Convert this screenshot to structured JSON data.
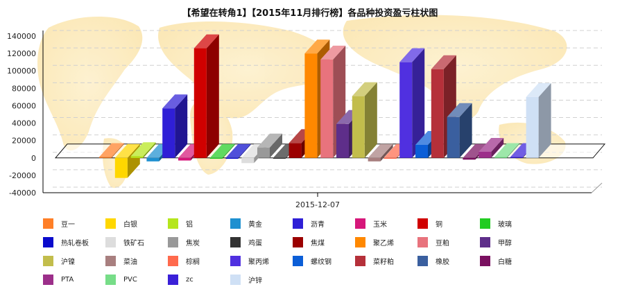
{
  "chart_data": {
    "type": "bar",
    "title": "【希望在转角1】【2015年11月排行榜】各品种投资盈亏柱状图",
    "categories": [
      "2015-12-07"
    ],
    "ylim": [
      -40000,
      140000
    ],
    "yticks": [
      "140000",
      "120000",
      "100000",
      "80000",
      "60000",
      "40000",
      "20000",
      "0",
      "-20000",
      "-40000"
    ],
    "grid": true,
    "legend_position": "bottom",
    "series": [
      {
        "name": "豆一",
        "color": "#ff7f27",
        "values": [
          1000
        ]
      },
      {
        "name": "白银",
        "color": "#ffd700",
        "values": [
          -23000
        ]
      },
      {
        "name": "铝",
        "color": "#b5e61d",
        "values": [
          2000
        ]
      },
      {
        "name": "黄金",
        "color": "#1e90d0",
        "values": [
          -4000
        ]
      },
      {
        "name": "沥青",
        "color": "#2f1fd6",
        "values": [
          57000
        ]
      },
      {
        "name": "玉米",
        "color": "#d6177a",
        "values": [
          -3000
        ]
      },
      {
        "name": "铜",
        "color": "#d00000",
        "values": [
          126000
        ]
      },
      {
        "name": "玻璃",
        "color": "#22cc22",
        "values": [
          -1000
        ]
      },
      {
        "name": "热轧卷板",
        "color": "#0a0acc",
        "values": [
          -1000
        ]
      },
      {
        "name": "铁矿石",
        "color": "#dddddd",
        "values": [
          -6000
        ]
      },
      {
        "name": "焦炭",
        "color": "#999999",
        "values": [
          12000
        ]
      },
      {
        "name": "鸡蛋",
        "color": "#333333",
        "values": [
          -1000
        ]
      },
      {
        "name": "焦煤",
        "color": "#9b0000",
        "values": [
          17000
        ]
      },
      {
        "name": "聚乙烯",
        "color": "#ff8800",
        "values": [
          120000
        ]
      },
      {
        "name": "豆粕",
        "color": "#e8737d",
        "values": [
          113000
        ]
      },
      {
        "name": "甲醇",
        "color": "#5e2e8a",
        "values": [
          39000
        ]
      },
      {
        "name": "沪镍",
        "color": "#c2bd4c",
        "values": [
          71000
        ]
      },
      {
        "name": "菜油",
        "color": "#a87f7f",
        "values": [
          -4000
        ]
      },
      {
        "name": "棕榈",
        "color": "#ff6a4d",
        "values": [
          -1000
        ]
      },
      {
        "name": "聚丙烯",
        "color": "#5030e0",
        "values": [
          110000
        ]
      },
      {
        "name": "螺纹钢",
        "color": "#0b5ed7",
        "values": [
          15000
        ]
      },
      {
        "name": "菜籽粕",
        "color": "#b5303a",
        "values": [
          102000
        ]
      },
      {
        "name": "橡胶",
        "color": "#3a5f9f",
        "values": [
          47000
        ]
      },
      {
        "name": "白糖",
        "color": "#7a1060",
        "values": [
          -2000
        ]
      },
      {
        "name": "PTA",
        "color": "#9c2f8a",
        "values": [
          7000
        ]
      },
      {
        "name": "PVC",
        "color": "#77dd88",
        "values": [
          1000
        ]
      },
      {
        "name": "zc",
        "color": "#3a20d8",
        "values": [
          1000
        ]
      },
      {
        "name": "沪锌",
        "color": "#cfe0f5",
        "values": [
          70000
        ]
      }
    ]
  }
}
